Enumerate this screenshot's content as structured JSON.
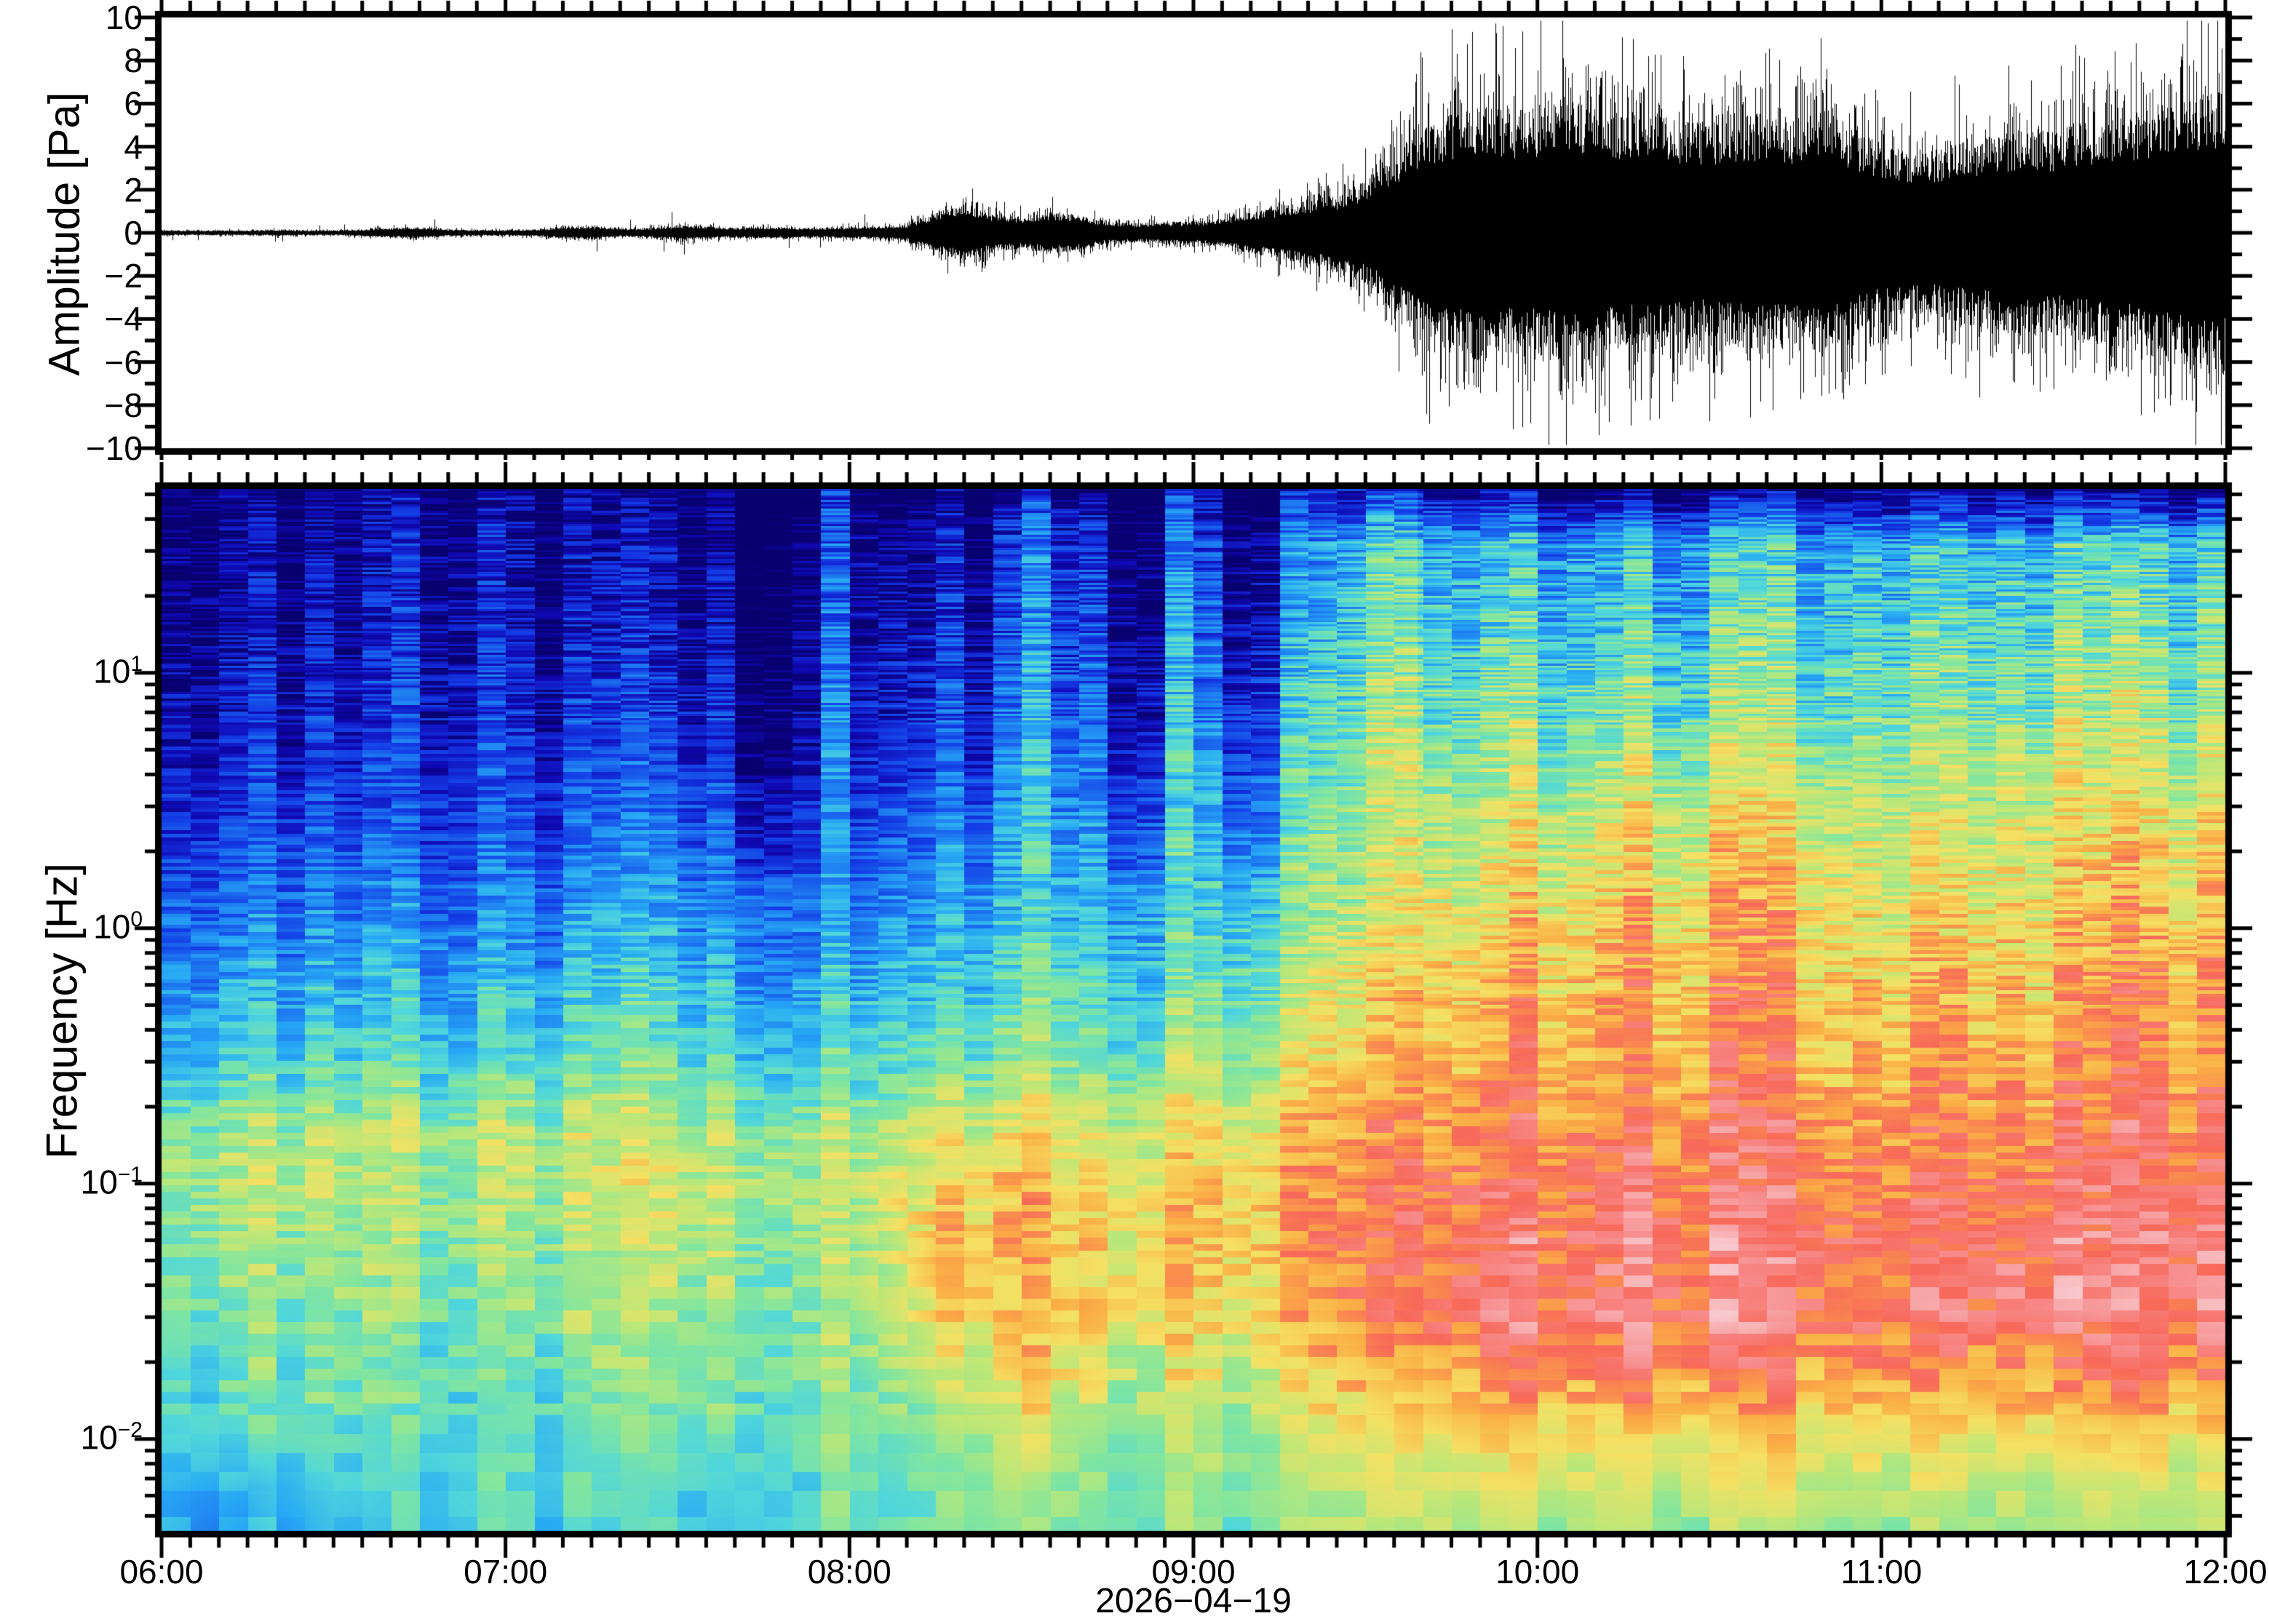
{
  "figure": {
    "description": "Infrasound record and spectrogram",
    "date_label": "2026−04−19"
  },
  "waveform_panel": {
    "title": "Amplitude [Pa]",
    "tick_labels": [
      "10",
      "8",
      "6",
      "4",
      "2",
      "0",
      "−2",
      "−4",
      "−6",
      "−8",
      "−10"
    ],
    "ylim": [
      -10,
      10
    ],
    "major_tick_pa": 2,
    "minor_tick_pa": 1
  },
  "spectrogram_panel": {
    "title": "Frequency [Hz]",
    "tick_labels": [
      {
        "base": "10",
        "exp": "1"
      },
      {
        "base": "10",
        "exp": "0"
      },
      {
        "base": "10",
        "exp": "−1"
      },
      {
        "base": "10",
        "exp": "−2"
      }
    ],
    "tick_exponents": [
      1,
      0,
      -1,
      -2
    ],
    "ylim_hz": [
      0.0043,
      52
    ],
    "scale": "log"
  },
  "time_axis": {
    "hour_labels": [
      "06:00",
      "07:00",
      "08:00",
      "09:00",
      "10:00",
      "11:00",
      "12:00"
    ],
    "hours": [
      6,
      7,
      8,
      9,
      10,
      11,
      12
    ],
    "minor_tick_minutes": 5,
    "date_label": "2026−04−19"
  },
  "chart_data": [
    {
      "type": "line",
      "name": "pressure-waveform",
      "ylabel": "Amplitude [Pa]",
      "ylim": [
        -10,
        10
      ],
      "x_start_hour": 6,
      "x_end_hour": 12,
      "envelope_dt_minutes": 5,
      "envelope_pa": [
        0.15,
        0.15,
        0.15,
        0.15,
        0.18,
        0.15,
        0.15,
        0.2,
        0.3,
        0.35,
        0.2,
        0.18,
        0.18,
        0.2,
        0.35,
        0.4,
        0.25,
        0.3,
        0.45,
        0.4,
        0.3,
        0.35,
        0.3,
        0.3,
        0.35,
        0.4,
        0.5,
        1.3,
        1.7,
        1.2,
        1.0,
        1.3,
        1.1,
        0.7,
        0.6,
        0.7,
        0.7,
        0.9,
        1.3,
        1.6,
        2.0,
        2.4,
        3.2,
        5.0,
        6.5,
        7.5,
        8.0,
        7.5,
        7.8,
        8.2,
        7.8,
        7.2,
        7.5,
        7.0,
        6.8,
        7.2,
        7.5,
        7.0,
        7.8,
        6.5,
        5.5,
        5.0,
        5.2,
        5.8,
        6.0,
        6.5,
        6.2,
        6.8,
        7.0,
        7.5,
        8.0,
        8.5,
        8.8
      ],
      "line_color": "#000000"
    },
    {
      "type": "heatmap",
      "name": "spectrogram",
      "ylabel": "Frequency [Hz]",
      "x_start_hour": 6,
      "x_end_hour": 12,
      "col_step_minutes": 15,
      "stripe_minutes": 5,
      "rows_log10_hz": [
        1.72,
        1.5,
        1.2,
        1.0,
        0.7,
        0.4,
        0.1,
        -0.2,
        -0.5,
        -0.8,
        -1.0,
        -1.2,
        -1.5,
        -1.8,
        -2.0,
        -2.2,
        -2.365
      ],
      "intensity": [
        [
          0.03,
          0.03,
          0.03,
          0.03,
          0.03,
          0.03,
          0.03,
          0.03,
          0.03,
          0.03,
          0.03,
          0.03,
          0.03,
          0.04,
          0.04,
          0.05,
          0.05,
          0.05,
          0.05,
          0.05,
          0.05,
          0.05,
          0.05,
          0.05,
          0.05
        ],
        [
          0.06,
          0.06,
          0.07,
          0.06,
          0.06,
          0.07,
          0.09,
          0.08,
          0.08,
          0.12,
          0.14,
          0.13,
          0.15,
          0.2,
          0.3,
          0.38,
          0.4,
          0.4,
          0.42,
          0.42,
          0.4,
          0.42,
          0.44,
          0.46,
          0.47
        ],
        [
          0.08,
          0.09,
          0.1,
          0.08,
          0.09,
          0.1,
          0.13,
          0.11,
          0.1,
          0.16,
          0.18,
          0.17,
          0.2,
          0.26,
          0.36,
          0.44,
          0.46,
          0.46,
          0.48,
          0.48,
          0.46,
          0.48,
          0.5,
          0.52,
          0.54
        ],
        [
          0.11,
          0.12,
          0.13,
          0.11,
          0.12,
          0.14,
          0.17,
          0.14,
          0.13,
          0.2,
          0.22,
          0.2,
          0.24,
          0.3,
          0.4,
          0.48,
          0.51,
          0.52,
          0.53,
          0.53,
          0.51,
          0.53,
          0.55,
          0.57,
          0.58
        ],
        [
          0.15,
          0.16,
          0.18,
          0.15,
          0.16,
          0.19,
          0.22,
          0.18,
          0.17,
          0.25,
          0.27,
          0.25,
          0.3,
          0.36,
          0.46,
          0.54,
          0.58,
          0.6,
          0.61,
          0.6,
          0.57,
          0.59,
          0.61,
          0.63,
          0.65
        ],
        [
          0.2,
          0.22,
          0.24,
          0.2,
          0.22,
          0.26,
          0.29,
          0.24,
          0.23,
          0.31,
          0.33,
          0.31,
          0.36,
          0.42,
          0.52,
          0.6,
          0.65,
          0.68,
          0.7,
          0.68,
          0.63,
          0.65,
          0.67,
          0.71,
          0.72
        ],
        [
          0.28,
          0.3,
          0.32,
          0.28,
          0.3,
          0.34,
          0.37,
          0.32,
          0.3,
          0.38,
          0.4,
          0.38,
          0.43,
          0.5,
          0.58,
          0.66,
          0.72,
          0.74,
          0.76,
          0.74,
          0.68,
          0.7,
          0.72,
          0.76,
          0.77
        ],
        [
          0.36,
          0.38,
          0.4,
          0.36,
          0.38,
          0.42,
          0.45,
          0.4,
          0.38,
          0.45,
          0.47,
          0.45,
          0.5,
          0.57,
          0.65,
          0.72,
          0.77,
          0.79,
          0.8,
          0.78,
          0.73,
          0.75,
          0.76,
          0.8,
          0.81
        ],
        [
          0.44,
          0.46,
          0.48,
          0.44,
          0.46,
          0.5,
          0.52,
          0.47,
          0.46,
          0.52,
          0.54,
          0.52,
          0.57,
          0.63,
          0.7,
          0.76,
          0.8,
          0.81,
          0.82,
          0.8,
          0.76,
          0.78,
          0.79,
          0.82,
          0.83
        ],
        [
          0.58,
          0.6,
          0.62,
          0.57,
          0.59,
          0.63,
          0.64,
          0.6,
          0.58,
          0.66,
          0.68,
          0.65,
          0.68,
          0.73,
          0.77,
          0.81,
          0.84,
          0.85,
          0.86,
          0.84,
          0.81,
          0.83,
          0.84,
          0.86,
          0.87
        ],
        [
          0.6,
          0.62,
          0.63,
          0.58,
          0.6,
          0.64,
          0.66,
          0.62,
          0.6,
          0.72,
          0.74,
          0.7,
          0.72,
          0.78,
          0.8,
          0.84,
          0.87,
          0.88,
          0.88,
          0.87,
          0.84,
          0.86,
          0.87,
          0.89,
          0.9
        ],
        [
          0.57,
          0.59,
          0.6,
          0.55,
          0.57,
          0.61,
          0.63,
          0.6,
          0.58,
          0.76,
          0.76,
          0.72,
          0.72,
          0.78,
          0.82,
          0.86,
          0.89,
          0.9,
          0.91,
          0.89,
          0.87,
          0.88,
          0.89,
          0.91,
          0.92
        ],
        [
          0.54,
          0.56,
          0.57,
          0.52,
          0.54,
          0.58,
          0.6,
          0.57,
          0.56,
          0.72,
          0.75,
          0.7,
          0.7,
          0.76,
          0.8,
          0.86,
          0.9,
          0.91,
          0.92,
          0.9,
          0.88,
          0.89,
          0.9,
          0.92,
          0.93
        ],
        [
          0.5,
          0.52,
          0.53,
          0.49,
          0.51,
          0.54,
          0.56,
          0.54,
          0.53,
          0.64,
          0.68,
          0.64,
          0.64,
          0.68,
          0.72,
          0.78,
          0.8,
          0.81,
          0.82,
          0.8,
          0.78,
          0.79,
          0.8,
          0.82,
          0.83
        ],
        [
          0.47,
          0.49,
          0.5,
          0.46,
          0.48,
          0.51,
          0.52,
          0.51,
          0.52,
          0.58,
          0.62,
          0.58,
          0.58,
          0.62,
          0.66,
          0.7,
          0.71,
          0.72,
          0.72,
          0.71,
          0.69,
          0.7,
          0.7,
          0.72,
          0.73
        ],
        [
          0.44,
          0.4,
          0.47,
          0.44,
          0.46,
          0.48,
          0.49,
          0.48,
          0.5,
          0.54,
          0.57,
          0.54,
          0.55,
          0.58,
          0.61,
          0.64,
          0.65,
          0.66,
          0.65,
          0.64,
          0.62,
          0.63,
          0.63,
          0.65,
          0.66
        ],
        [
          0.42,
          0.36,
          0.45,
          0.43,
          0.45,
          0.46,
          0.47,
          0.47,
          0.49,
          0.52,
          0.55,
          0.52,
          0.53,
          0.56,
          0.58,
          0.6,
          0.61,
          0.62,
          0.6,
          0.59,
          0.58,
          0.59,
          0.58,
          0.6,
          0.62
        ]
      ],
      "colormap_stops": [
        [
          0.0,
          "#08006e"
        ],
        [
          0.1,
          "#1009b4"
        ],
        [
          0.2,
          "#143ce6"
        ],
        [
          0.3,
          "#1e78f0"
        ],
        [
          0.38,
          "#28aaf5"
        ],
        [
          0.46,
          "#50d7dc"
        ],
        [
          0.54,
          "#82e6a0"
        ],
        [
          0.62,
          "#bee878"
        ],
        [
          0.7,
          "#f5e164"
        ],
        [
          0.78,
          "#fbaf46"
        ],
        [
          0.86,
          "#f8695a"
        ],
        [
          0.93,
          "#f78c8c"
        ],
        [
          1.0,
          "#f9c9cd"
        ]
      ]
    }
  ]
}
